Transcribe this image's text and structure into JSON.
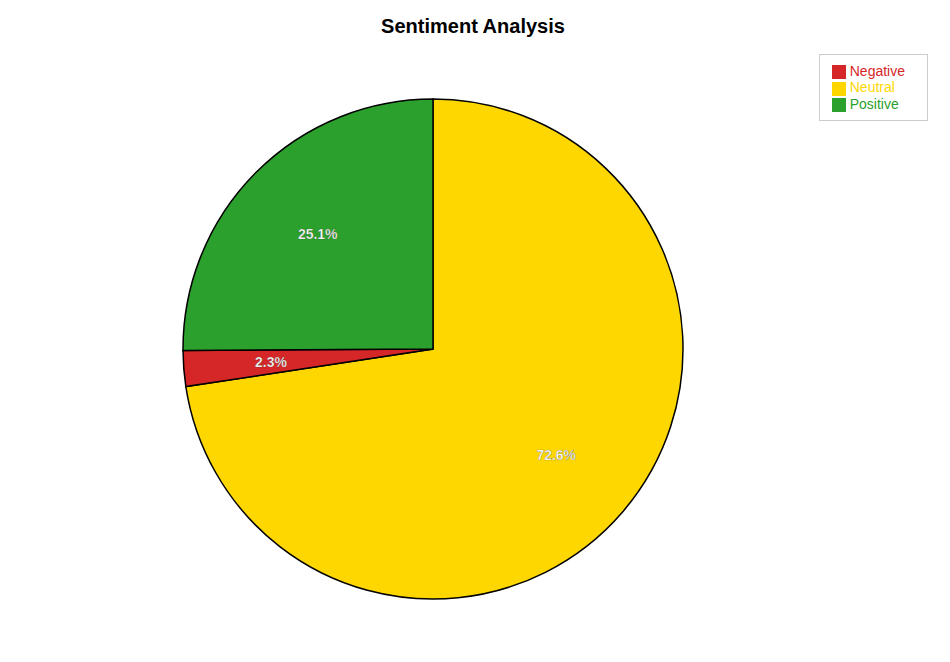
{
  "chart_data": {
    "type": "pie",
    "title": "Sentiment Analysis",
    "categories": [
      "Neutral",
      "Negative",
      "Positive"
    ],
    "values": [
      72.6,
      2.3,
      25.1
    ],
    "value_labels": [
      "72.6%",
      "2.3%",
      "25.1%"
    ],
    "colors": [
      "#FFD700",
      "#d62728",
      "#2ca02c"
    ],
    "data_labels": true,
    "legend": "upper right"
  }
}
